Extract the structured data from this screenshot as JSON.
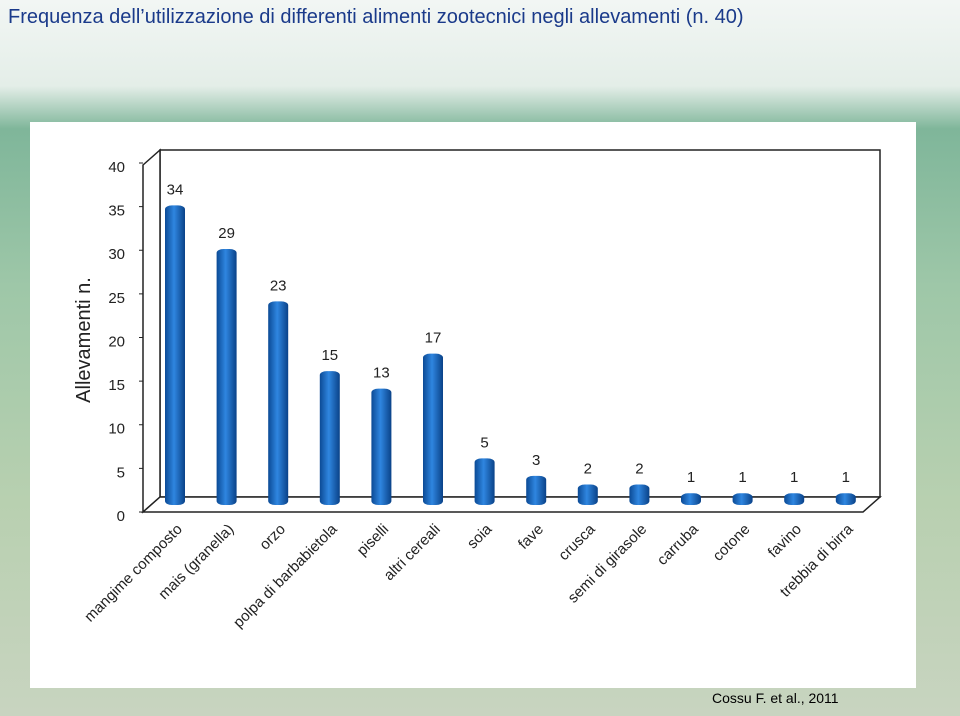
{
  "title": "Frequenza dell’utilizzazione di differenti alimenti zootecnici  negli allevamenti (n. 40)",
  "source": "Cossu F. et al., 2011",
  "chart_data": {
    "type": "bar",
    "ylabel": "Allevamenti n.",
    "categories": [
      "mangime composto",
      "mais (granella)",
      "orzo",
      "polpa di barbabietola",
      "piselli",
      "altri cereali",
      "soia",
      "fave",
      "crusca",
      "semi di girasole",
      "carruba",
      "cotone",
      "favino",
      "trebbia di birra"
    ],
    "values": [
      34,
      29,
      23,
      15,
      13,
      17,
      5,
      3,
      2,
      2,
      1,
      1,
      1,
      1
    ],
    "color": "#1f6fc4",
    "ylim": [
      0,
      40
    ],
    "yticks": [
      0,
      5,
      10,
      15,
      20,
      25,
      30,
      35,
      40
    ]
  }
}
